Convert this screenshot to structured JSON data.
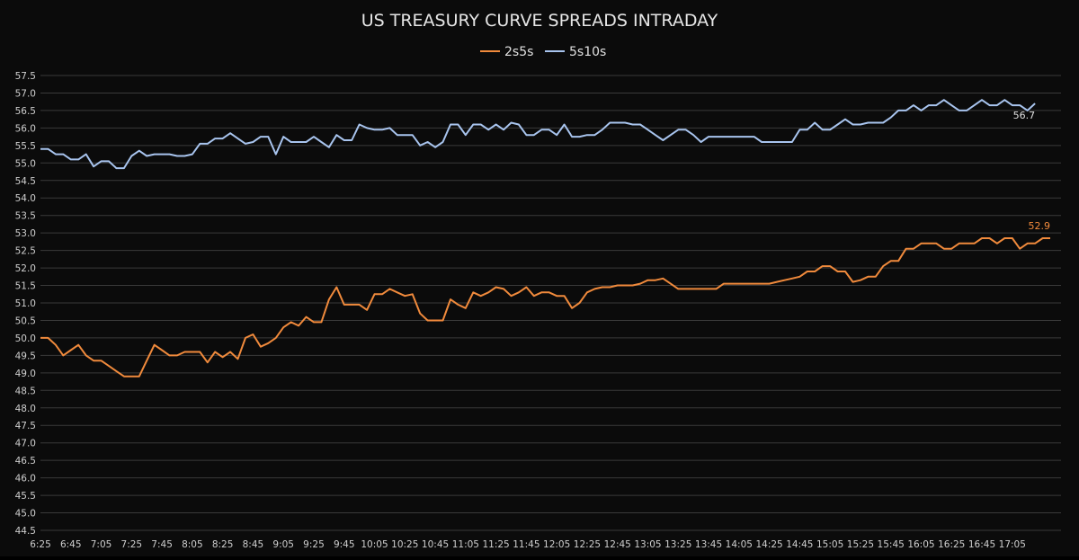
{
  "chart_data": {
    "type": "line",
    "title": "US TREASURY CURVE SPREADS INTRADAY",
    "xlabel": "",
    "ylabel": "",
    "ylim": [
      44.5,
      57.5
    ],
    "y_ticks": [
      "44.5",
      "45.0",
      "45.5",
      "46.0",
      "46.5",
      "47.0",
      "47.5",
      "48.0",
      "48.5",
      "49.0",
      "49.5",
      "50.0",
      "50.5",
      "51.0",
      "51.5",
      "52.0",
      "52.5",
      "53.0",
      "53.5",
      "54.0",
      "54.5",
      "55.0",
      "55.5",
      "56.0",
      "56.5",
      "57.0",
      "57.5"
    ],
    "x_tick_labels": [
      "6:25",
      "6:45",
      "7:05",
      "7:25",
      "7:45",
      "8:05",
      "8:25",
      "8:45",
      "9:05",
      "9:25",
      "9:45",
      "10:05",
      "10:25",
      "10:45",
      "11:05",
      "11:25",
      "11:45",
      "12:05",
      "12:25",
      "12:45",
      "13:05",
      "13:25",
      "13:45",
      "14:05",
      "14:25",
      "14:45",
      "15:05",
      "15:25",
      "15:45",
      "16:05",
      "16:25",
      "16:45",
      "17:05"
    ],
    "x_start": "6:25",
    "x_step_minutes": 5,
    "grid": "horizontal",
    "legend_position": "top-center",
    "series": [
      {
        "name": "2s5s",
        "color": "#f08a3c",
        "end_label": "52.9",
        "values": [
          50.0,
          50.0,
          49.8,
          49.5,
          49.65,
          49.8,
          49.5,
          49.35,
          49.35,
          49.2,
          49.05,
          48.9,
          48.9,
          48.9,
          49.35,
          49.8,
          49.65,
          49.5,
          49.5,
          49.6,
          49.6,
          49.6,
          49.3,
          49.6,
          49.45,
          49.6,
          49.4,
          50.0,
          50.1,
          49.75,
          49.85,
          50.0,
          50.3,
          50.45,
          50.35,
          50.6,
          50.45,
          50.45,
          51.1,
          51.45,
          50.95,
          50.95,
          50.95,
          50.8,
          51.25,
          51.25,
          51.4,
          51.3,
          51.2,
          51.25,
          50.7,
          50.5,
          50.5,
          50.5,
          51.1,
          50.95,
          50.85,
          51.3,
          51.2,
          51.3,
          51.45,
          51.4,
          51.2,
          51.3,
          51.45,
          51.2,
          51.3,
          51.3,
          51.2,
          51.2,
          50.85,
          51.0,
          51.3,
          51.4,
          51.45,
          51.45,
          51.5,
          51.5,
          51.5,
          51.55,
          51.65,
          51.65,
          51.7,
          51.55,
          51.4,
          51.4,
          51.4,
          51.4,
          51.4,
          51.4,
          51.55,
          51.55,
          51.55,
          51.55,
          51.55,
          51.55,
          51.55,
          51.6,
          51.65,
          51.7,
          51.75,
          51.9,
          51.9,
          52.05,
          52.05,
          51.9,
          51.9,
          51.6,
          51.65,
          51.75,
          51.75,
          52.05,
          52.2,
          52.2,
          52.55,
          52.55,
          52.7,
          52.7,
          52.7,
          52.55,
          52.55,
          52.7,
          52.7,
          52.7,
          52.85,
          52.85,
          52.7,
          52.85,
          52.85,
          52.55,
          52.7,
          52.7,
          52.85,
          52.85
        ]
      },
      {
        "name": "5s10s",
        "color": "#a8c4ee",
        "end_label": "56.7",
        "values": [
          55.4,
          55.4,
          55.25,
          55.25,
          55.1,
          55.1,
          55.25,
          54.9,
          55.05,
          55.05,
          54.85,
          54.85,
          55.2,
          55.35,
          55.2,
          55.25,
          55.25,
          55.25,
          55.2,
          55.2,
          55.25,
          55.55,
          55.55,
          55.7,
          55.7,
          55.85,
          55.7,
          55.55,
          55.6,
          55.75,
          55.75,
          55.25,
          55.75,
          55.6,
          55.6,
          55.6,
          55.75,
          55.6,
          55.45,
          55.8,
          55.65,
          55.65,
          56.1,
          56.0,
          55.95,
          55.95,
          56.0,
          55.8,
          55.8,
          55.8,
          55.5,
          55.6,
          55.45,
          55.6,
          56.1,
          56.1,
          55.8,
          56.1,
          56.1,
          55.95,
          56.1,
          55.95,
          56.15,
          56.1,
          55.8,
          55.8,
          55.95,
          55.95,
          55.8,
          56.1,
          55.75,
          55.75,
          55.8,
          55.8,
          55.95,
          56.15,
          56.15,
          56.15,
          56.1,
          56.1,
          55.95,
          55.8,
          55.65,
          55.8,
          55.95,
          55.95,
          55.8,
          55.6,
          55.75,
          55.75,
          55.75,
          55.75,
          55.75,
          55.75,
          55.75,
          55.6,
          55.6,
          55.6,
          55.6,
          55.6,
          55.95,
          55.95,
          56.15,
          55.95,
          55.95,
          56.1,
          56.25,
          56.1,
          56.1,
          56.15,
          56.15,
          56.15,
          56.3,
          56.5,
          56.5,
          56.65,
          56.5,
          56.65,
          56.65,
          56.8,
          56.65,
          56.5,
          56.5,
          56.65,
          56.8,
          56.65,
          56.65,
          56.8,
          56.65,
          56.65,
          56.5,
          56.7
        ]
      }
    ]
  }
}
